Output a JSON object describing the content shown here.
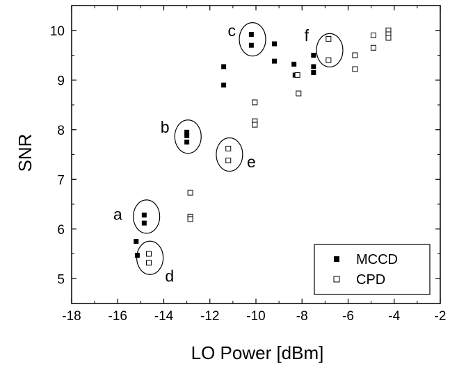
{
  "chart_data": {
    "type": "scatter",
    "xlabel": "LO Power [dBm]",
    "ylabel": "SNR",
    "xlim": [
      -18,
      -2
    ],
    "ylim": [
      4.5,
      10.5
    ],
    "x_ticks": [
      "-18",
      "-16",
      "-14",
      "-12",
      "-10",
      "-8",
      "-6",
      "-4",
      "-2"
    ],
    "y_ticks": [
      "5",
      "6",
      "7",
      "8",
      "9",
      "10"
    ],
    "legend_position": "bottom-right",
    "series": [
      {
        "name": "MCCD",
        "marker": "filled-square",
        "color": "#000000",
        "points": [
          [
            -15.2,
            5.75
          ],
          [
            -15.15,
            5.47
          ],
          [
            -14.85,
            6.28
          ],
          [
            -14.85,
            6.12
          ],
          [
            -13.0,
            7.95
          ],
          [
            -13.0,
            7.88
          ],
          [
            -13.0,
            7.75
          ],
          [
            -11.4,
            9.27
          ],
          [
            -11.4,
            8.9
          ],
          [
            -10.2,
            9.92
          ],
          [
            -10.2,
            9.7
          ],
          [
            -9.2,
            9.73
          ],
          [
            -9.2,
            9.38
          ],
          [
            -8.35,
            9.32
          ],
          [
            -8.3,
            9.1
          ],
          [
            -7.5,
            9.5
          ],
          [
            -7.5,
            9.27
          ],
          [
            -7.5,
            9.15
          ]
        ]
      },
      {
        "name": "CPD",
        "marker": "open-square",
        "color": "#000000",
        "points": [
          [
            -14.65,
            5.5
          ],
          [
            -14.65,
            5.32
          ],
          [
            -12.85,
            6.73
          ],
          [
            -12.85,
            6.25
          ],
          [
            -12.85,
            6.2
          ],
          [
            -11.2,
            7.62
          ],
          [
            -11.2,
            7.38
          ],
          [
            -10.05,
            8.55
          ],
          [
            -10.05,
            8.17
          ],
          [
            -10.05,
            8.1
          ],
          [
            -8.2,
            9.1
          ],
          [
            -8.15,
            8.73
          ],
          [
            -6.85,
            9.83
          ],
          [
            -6.85,
            9.4
          ],
          [
            -5.7,
            9.5
          ],
          [
            -5.7,
            9.22
          ],
          [
            -4.9,
            9.9
          ],
          [
            -4.9,
            9.65
          ],
          [
            -4.25,
            10.0
          ],
          [
            -4.25,
            9.92
          ],
          [
            -4.25,
            9.85
          ]
        ]
      }
    ],
    "annotations": [
      {
        "label": "a",
        "circle_center": [
          -14.75,
          6.25
        ],
        "text_at": [
          -16.0,
          6.3
        ]
      },
      {
        "label": "b",
        "circle_center": [
          -12.95,
          7.86
        ],
        "text_at": [
          -13.95,
          8.05
        ]
      },
      {
        "label": "c",
        "circle_center": [
          -10.15,
          9.82
        ],
        "text_at": [
          -11.05,
          10.0
        ]
      },
      {
        "label": "d",
        "circle_center": [
          -14.6,
          5.42
        ],
        "text_at": [
          -13.75,
          5.05
        ]
      },
      {
        "label": "e",
        "circle_center": [
          -11.15,
          7.5
        ],
        "text_at": [
          -10.2,
          7.35
        ]
      },
      {
        "label": "f",
        "circle_center": [
          -6.8,
          9.6
        ],
        "text_at": [
          -7.8,
          9.9
        ]
      }
    ]
  }
}
